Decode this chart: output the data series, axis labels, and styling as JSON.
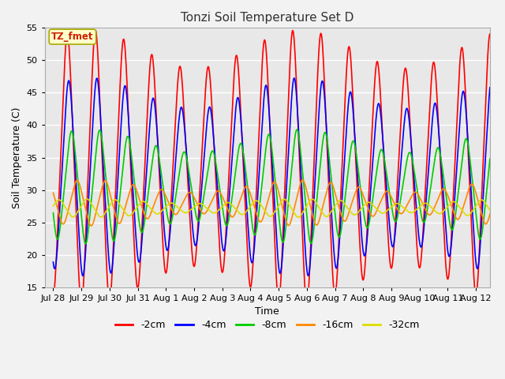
{
  "title": "Tonzi Soil Temperature Set D",
  "xlabel": "Time",
  "ylabel": "Soil Temperature (C)",
  "ylim": [
    15,
    55
  ],
  "annotation_text": "TZ_fmet",
  "annotation_color": "#cc2200",
  "annotation_bg": "#ffffcc",
  "annotation_border": "#aaaa00",
  "plot_bg_color": "#e8e8e8",
  "fig_bg_color": "#f2f2f2",
  "series": [
    {
      "label": "-2cm",
      "color": "#ff0000",
      "amplitude": 15.5,
      "mean": 33.5,
      "phase_shift": 0.0,
      "amp_var": 2.5
    },
    {
      "label": "-4cm",
      "color": "#0000ff",
      "amplitude": 11.0,
      "mean": 32.0,
      "phase_shift": 0.05,
      "amp_var": 2.0
    },
    {
      "label": "-8cm",
      "color": "#00cc00",
      "amplitude": 6.0,
      "mean": 30.5,
      "phase_shift": 0.15,
      "amp_var": 1.5
    },
    {
      "label": "-16cm",
      "color": "#ff8800",
      "amplitude": 2.2,
      "mean": 28.0,
      "phase_shift": 0.35,
      "amp_var": 0.8
    },
    {
      "label": "-32cm",
      "color": "#dddd00",
      "amplitude": 0.9,
      "mean": 27.2,
      "phase_shift": 0.7,
      "amp_var": 0.3
    }
  ],
  "xtick_labels": [
    "Jul 28",
    "Jul 29",
    "Jul 30",
    "Jul 31",
    "Aug 1",
    "Aug 2",
    "Aug 3",
    "Aug 4",
    "Aug 5",
    "Aug 6",
    "Aug 7",
    "Aug 8",
    "Aug 9",
    "Aug 10",
    "Aug 11",
    "Aug 12"
  ],
  "xtick_positions": [
    0,
    1,
    2,
    3,
    4,
    5,
    6,
    7,
    8,
    9,
    10,
    11,
    12,
    13,
    14,
    15
  ],
  "ytick_positions": [
    15,
    20,
    25,
    30,
    35,
    40,
    45,
    50,
    55
  ],
  "grid_color": "#ffffff",
  "linewidth": 1.2
}
